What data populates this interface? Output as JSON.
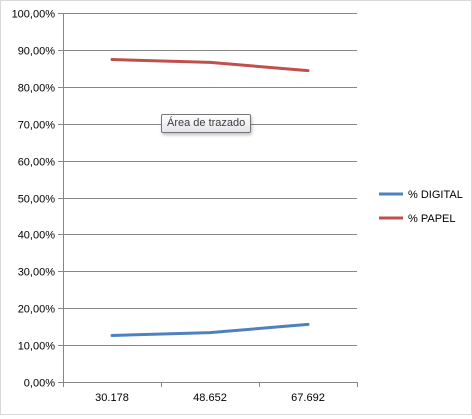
{
  "chart_data": {
    "type": "line",
    "categories": [
      "30.178",
      "48.652",
      "67.692"
    ],
    "series": [
      {
        "name": "% DIGITAL",
        "values": [
          12.6,
          13.4,
          15.6
        ],
        "color": "#4f81bd"
      },
      {
        "name": "% PAPEL",
        "values": [
          87.4,
          86.6,
          84.4
        ],
        "color": "#c0504d"
      }
    ],
    "y_ticks": [
      "0,00%",
      "10,00%",
      "20,00%",
      "30,00%",
      "40,00%",
      "50,00%",
      "60,00%",
      "70,00%",
      "80,00%",
      "90,00%",
      "100,00%"
    ],
    "ylim": [
      0,
      100
    ],
    "grid": true,
    "legend_position": "right",
    "title": "",
    "xlabel": "",
    "ylabel": ""
  },
  "tooltip": {
    "text": "Área de trazado"
  }
}
